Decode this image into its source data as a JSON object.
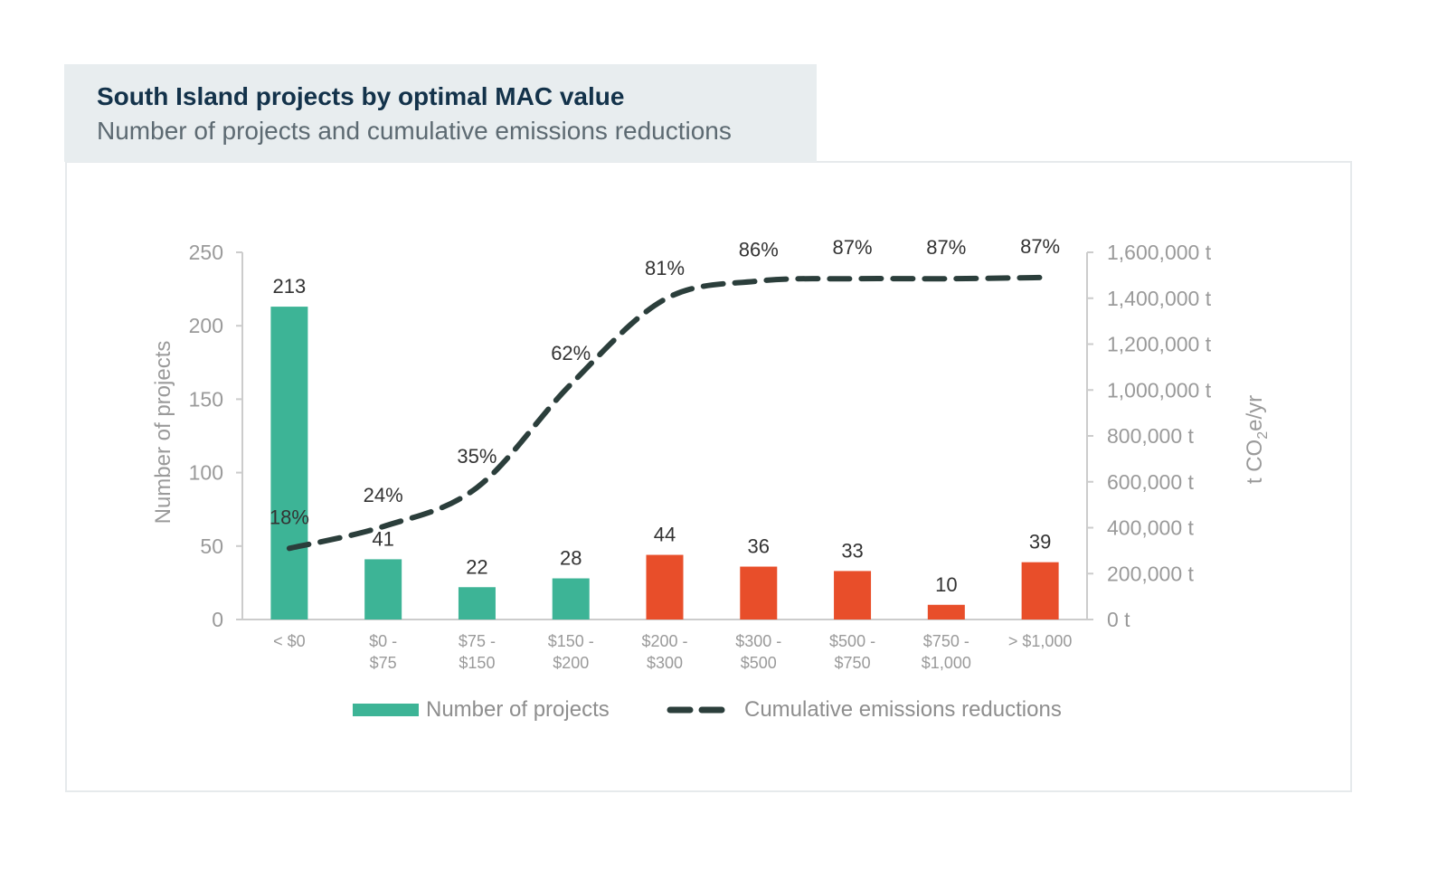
{
  "title": "South Island projects by optimal MAC value",
  "subtitle": "Number of projects and cumulative emissions reductions",
  "colors": {
    "teal": "#3db496",
    "orange": "#e84e2a",
    "line": "#2b3e3b",
    "axis": "#cccccc",
    "tick_text": "#9a9a9a"
  },
  "chart_data": {
    "type": "bar",
    "title": "South Island projects by optimal MAC value",
    "subtitle": "Number of projects and cumulative emissions reductions",
    "categories": [
      [
        "< $0"
      ],
      [
        "$0 -",
        "$75"
      ],
      [
        "$75 -",
        "$150"
      ],
      [
        "$150 -",
        "$200"
      ],
      [
        "$200 -",
        "$300"
      ],
      [
        "$300 -",
        "$500"
      ],
      [
        "$500 -",
        "$750"
      ],
      [
        "$750 -",
        "$1,000"
      ],
      [
        "> $1,000"
      ]
    ],
    "series": [
      {
        "name": "Number of projects",
        "type": "bar",
        "axis": "left",
        "values": [
          213,
          41,
          22,
          28,
          44,
          36,
          33,
          10,
          39
        ],
        "labels": [
          "213",
          "41",
          "22",
          "28",
          "44",
          "36",
          "33",
          "10",
          "39"
        ],
        "bar_colors": [
          "teal",
          "teal",
          "teal",
          "teal",
          "orange",
          "orange",
          "orange",
          "orange",
          "orange"
        ]
      },
      {
        "name": "Cumulative emissions reductions",
        "type": "line",
        "style": "dashed",
        "axis": "right",
        "values": [
          310000,
          405000,
          575000,
          1025000,
          1395000,
          1475000,
          1485000,
          1485000,
          1490000
        ],
        "labels": [
          "18%",
          "24%",
          "35%",
          "62%",
          "81%",
          "86%",
          "87%",
          "87%",
          "87%"
        ]
      }
    ],
    "left_axis": {
      "label": "Number of projects",
      "range": [
        0,
        250
      ],
      "ticks": [
        0,
        50,
        100,
        150,
        200,
        250
      ],
      "tick_labels": [
        "0",
        "50",
        "100",
        "150",
        "200",
        "250"
      ]
    },
    "right_axis": {
      "label_prefix": "t CO",
      "label_sub": "2",
      "label_suffix": "e/yr",
      "range": [
        0,
        1600000
      ],
      "ticks": [
        0,
        200000,
        400000,
        600000,
        800000,
        1000000,
        1200000,
        1400000,
        1600000
      ],
      "tick_labels": [
        "0 t",
        "200,000 t",
        "400,000 t",
        "600,000 t",
        "800,000 t",
        "1,000,000 t",
        "1,200,000 t",
        "1,400,000 t",
        "1,600,000 t"
      ]
    },
    "legend": {
      "position": "bottom-center",
      "items": [
        "Number of projects",
        "Cumulative emissions reductions"
      ]
    }
  }
}
